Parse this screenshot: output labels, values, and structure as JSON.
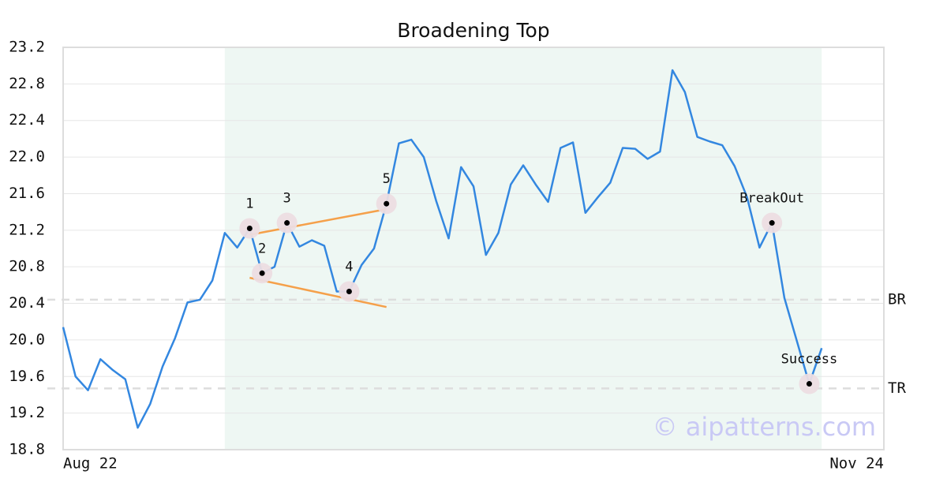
{
  "chart_data": {
    "type": "line",
    "title": "Broadening Top",
    "watermark": "© aipatterns.com",
    "xlim": [
      0,
      66
    ],
    "xticks": [
      {
        "value": 0,
        "label": "Aug 22"
      },
      {
        "value": 66,
        "label": "Nov 24"
      }
    ],
    "ylim": [
      18.8,
      23.2
    ],
    "yticks": [
      18.8,
      19.2,
      19.6,
      {
        "value": 20,
        "label": "20.0"
      },
      20.4,
      20.8,
      21.2,
      21.6,
      {
        "value": 22,
        "label": "22.0"
      },
      22.4,
      22.8,
      23.2
    ],
    "grid": true,
    "pattern_range": [
      13,
      61
    ],
    "x": [
      0,
      1,
      2,
      3,
      4,
      5,
      6,
      7,
      8,
      9,
      10,
      11,
      12,
      13,
      14,
      15,
      16,
      17,
      18,
      19,
      20,
      21,
      22,
      23,
      24,
      25,
      26,
      27,
      28,
      29,
      30,
      31,
      32,
      33,
      34,
      35,
      36,
      37,
      38,
      39,
      40,
      41,
      42,
      43,
      44,
      45,
      46,
      47,
      48,
      49,
      50,
      51,
      52,
      53,
      54,
      55,
      56,
      57,
      58,
      59,
      60,
      61
    ],
    "series": [
      {
        "color": "#3387e0",
        "values": [
          20.14,
          19.6,
          19.45,
          19.79,
          19.67,
          19.57,
          19.04,
          19.3,
          19.71,
          20.02,
          20.41,
          20.44,
          20.65,
          21.17,
          21.01,
          21.22,
          20.73,
          20.8,
          21.28,
          21.02,
          21.09,
          21.03,
          20.53,
          20.53,
          20.82,
          21.0,
          21.49,
          22.15,
          22.19,
          22.0,
          21.52,
          21.11,
          21.89,
          21.68,
          20.93,
          21.17,
          21.7,
          21.91,
          21.7,
          21.51,
          22.1,
          22.16,
          21.39,
          21.56,
          21.72,
          22.1,
          22.09,
          21.98,
          22.06,
          22.95,
          22.71,
          22.22,
          22.17,
          22.13,
          21.9,
          21.56,
          21.01,
          21.28,
          20.46,
          19.99,
          19.52,
          19.91
        ]
      }
    ],
    "trendlines": [
      {
        "color": "#f5a04a",
        "x": [
          15,
          26
        ],
        "y": [
          21.15,
          21.43
        ]
      },
      {
        "color": "#f5a04a",
        "x": [
          15,
          26
        ],
        "y": [
          20.68,
          20.36
        ]
      }
    ],
    "reference_lines": [
      {
        "value": 20.44,
        "label": "BR"
      },
      {
        "value": 19.47,
        "label": "TR"
      }
    ],
    "annotations": [
      {
        "label": "1",
        "x": 15
      },
      {
        "label": "2",
        "x": 16
      },
      {
        "label": "3",
        "x": 18
      },
      {
        "label": "4",
        "x": 23
      },
      {
        "label": "5",
        "x": 26
      },
      {
        "label": "BreakOut",
        "x": 57
      },
      {
        "label": "Success",
        "x": 60
      }
    ]
  }
}
